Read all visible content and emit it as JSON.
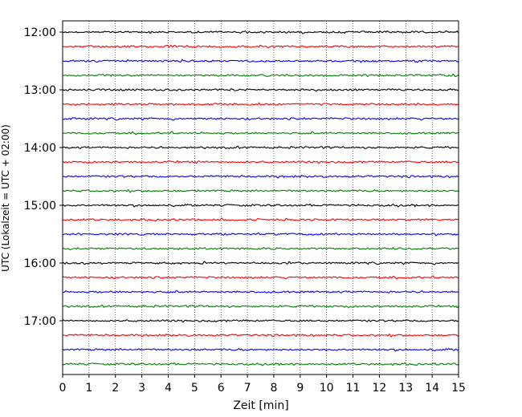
{
  "chart_data": {
    "type": "line",
    "title": "",
    "xlabel": "Zeit  [min]",
    "ylabel": "UTC (Lokalzeit = UTC + 02:00)",
    "xlim": [
      0,
      15
    ],
    "x_ticks": [
      0,
      1,
      2,
      3,
      4,
      5,
      6,
      7,
      8,
      9,
      10,
      11,
      12,
      13,
      14,
      15
    ],
    "y_ticks": [
      "12:00",
      "13:00",
      "14:00",
      "15:00",
      "16:00",
      "17:00"
    ],
    "grid": "vertical dotted",
    "trace_colors": [
      "#000000",
      "#ff0000",
      "#0000ff",
      "#008000"
    ],
    "traces": [
      {
        "start": "12:00",
        "color": "#000000"
      },
      {
        "start": "12:15",
        "color": "#ff0000"
      },
      {
        "start": "12:30",
        "color": "#0000ff"
      },
      {
        "start": "12:45",
        "color": "#008000"
      },
      {
        "start": "13:00",
        "color": "#000000"
      },
      {
        "start": "13:15",
        "color": "#ff0000"
      },
      {
        "start": "13:30",
        "color": "#0000ff"
      },
      {
        "start": "13:45",
        "color": "#008000"
      },
      {
        "start": "14:00",
        "color": "#000000"
      },
      {
        "start": "14:15",
        "color": "#ff0000"
      },
      {
        "start": "14:30",
        "color": "#0000ff"
      },
      {
        "start": "14:45",
        "color": "#008000"
      },
      {
        "start": "15:00",
        "color": "#000000"
      },
      {
        "start": "15:15",
        "color": "#ff0000"
      },
      {
        "start": "15:30",
        "color": "#0000ff"
      },
      {
        "start": "15:45",
        "color": "#008000"
      },
      {
        "start": "16:00",
        "color": "#000000"
      },
      {
        "start": "16:15",
        "color": "#ff0000"
      },
      {
        "start": "16:30",
        "color": "#0000ff"
      },
      {
        "start": "16:45",
        "color": "#008000"
      },
      {
        "start": "17:00",
        "color": "#000000"
      },
      {
        "start": "17:15",
        "color": "#ff0000"
      },
      {
        "start": "17:30",
        "color": "#0000ff"
      },
      {
        "start": "17:45",
        "color": "#008000"
      }
    ]
  }
}
